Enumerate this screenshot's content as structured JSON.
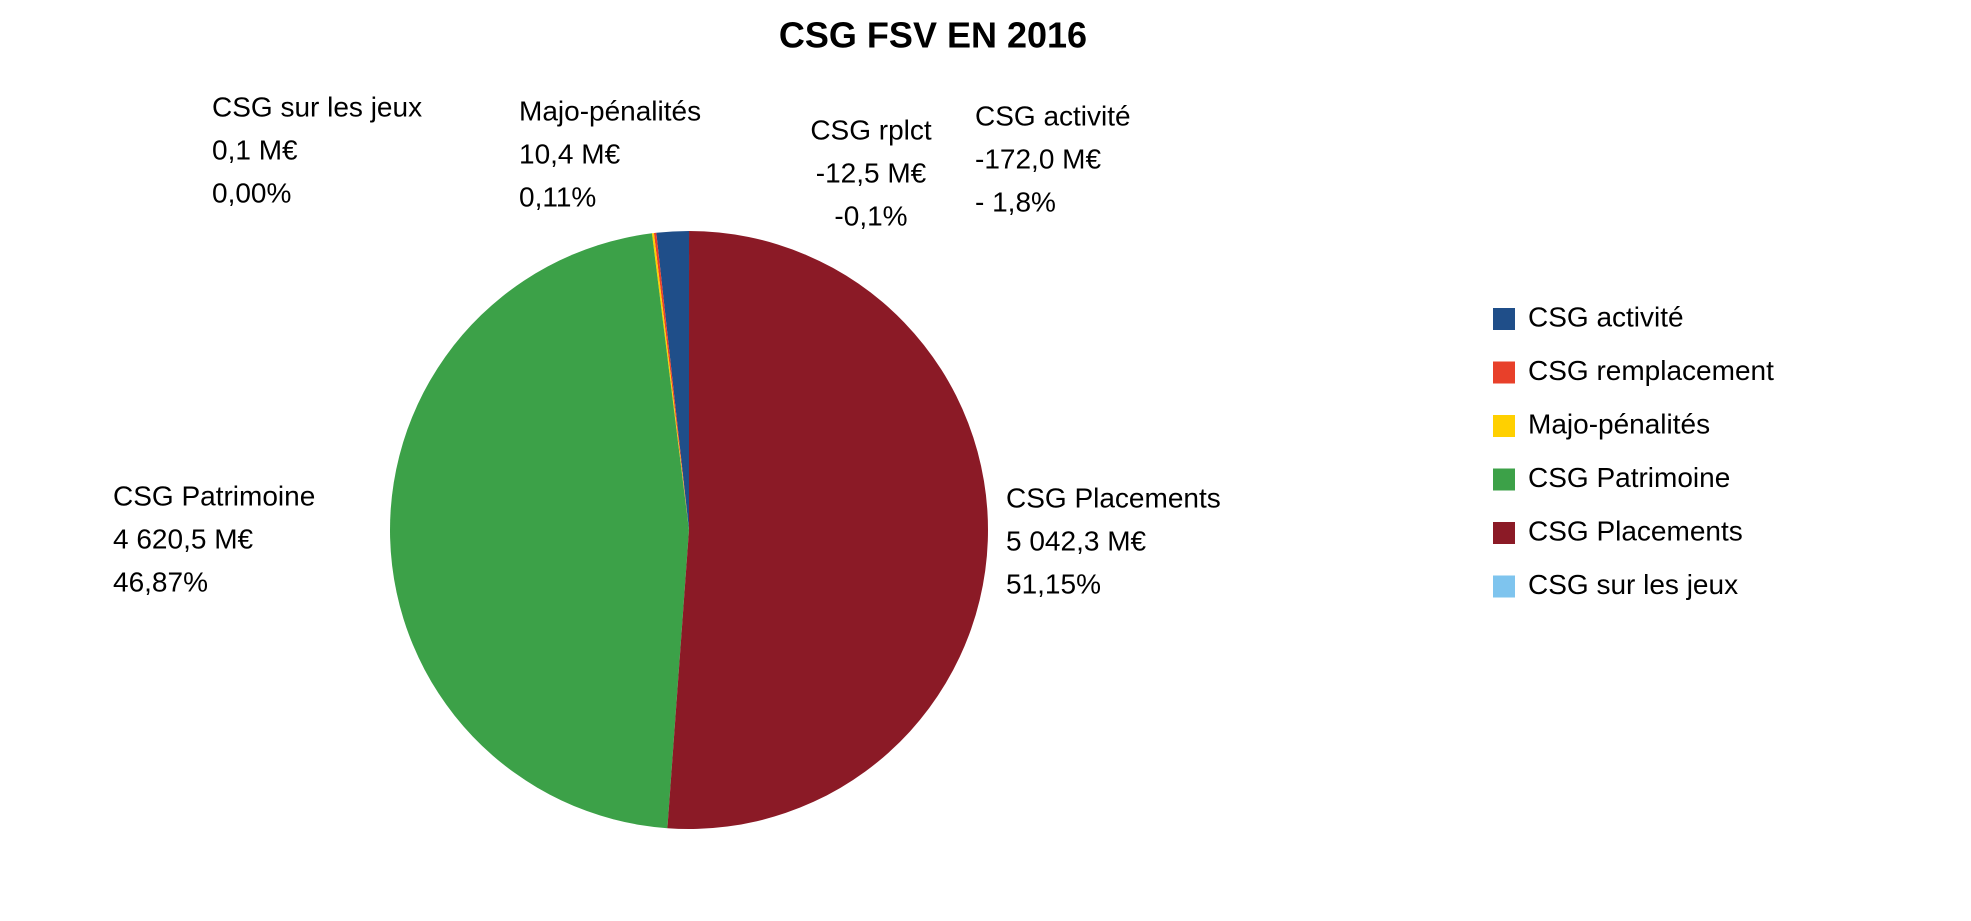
{
  "chart_data": {
    "type": "pie",
    "title": "CSG FSV EN 2016",
    "series": [
      {
        "name": "CSG activité",
        "slice_label": "CSG activité",
        "color": "#1f4e89",
        "value": -172.0,
        "value_label": "-172,0 M€",
        "percent": -1.8,
        "percent_label": "- 1,8%"
      },
      {
        "name": "CSG remplacement",
        "slice_label": "CSG rplct",
        "color": "#e8402a",
        "value": -12.5,
        "value_label": "-12,5 M€",
        "percent": -0.1,
        "percent_label": "-0,1%"
      },
      {
        "name": "Majo-pénalités",
        "slice_label": "Majo-pénalités",
        "color": "#ffd000",
        "value": 10.4,
        "value_label": "10,4 M€",
        "percent": 0.11,
        "percent_label": "0,11%"
      },
      {
        "name": "CSG Patrimoine",
        "slice_label": "CSG Patrimoine",
        "color": "#3ca148",
        "value": 4620.5,
        "value_label": "4 620,5 M€",
        "percent": 46.87,
        "percent_label": "46,87%"
      },
      {
        "name": "CSG Placements",
        "slice_label": "CSG Placements",
        "color": "#8b1a26",
        "value": 5042.3,
        "value_label": "5 042,3 M€",
        "percent": 51.15,
        "percent_label": "51,15%"
      },
      {
        "name": "CSG sur les jeux",
        "slice_label": "CSG sur les jeux",
        "color": "#7ec4ee",
        "value": 0.1,
        "value_label": "0,1 M€",
        "percent": 0.0,
        "percent_label": "0,00%"
      }
    ]
  }
}
